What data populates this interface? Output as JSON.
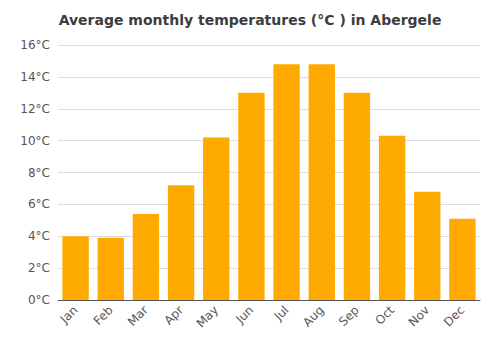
{
  "chart_data": {
    "type": "bar",
    "title": "Average monthly temperatures (°C ) in Abergele",
    "categories": [
      "Jan",
      "Feb",
      "Mar",
      "Apr",
      "May",
      "Jun",
      "Jul",
      "Aug",
      "Sep",
      "Oct",
      "Nov",
      "Dec"
    ],
    "values": [
      4.0,
      3.9,
      5.4,
      7.2,
      10.2,
      13.0,
      14.8,
      14.8,
      13.0,
      10.3,
      6.8,
      5.1
    ],
    "color": "#FFAA00",
    "ylim": [
      0,
      16
    ],
    "yticks": [
      {
        "value": 0,
        "label": "0°C"
      },
      {
        "value": 2,
        "label": "2°C"
      },
      {
        "value": 4,
        "label": "4°C"
      },
      {
        "value": 6,
        "label": "6°C"
      },
      {
        "value": 8,
        "label": "8°C"
      },
      {
        "value": 10,
        "label": "10°C"
      },
      {
        "value": 12,
        "label": "12°C"
      },
      {
        "value": 14,
        "label": "14°C"
      },
      {
        "value": 16,
        "label": "16°C"
      }
    ],
    "grid": true
  }
}
